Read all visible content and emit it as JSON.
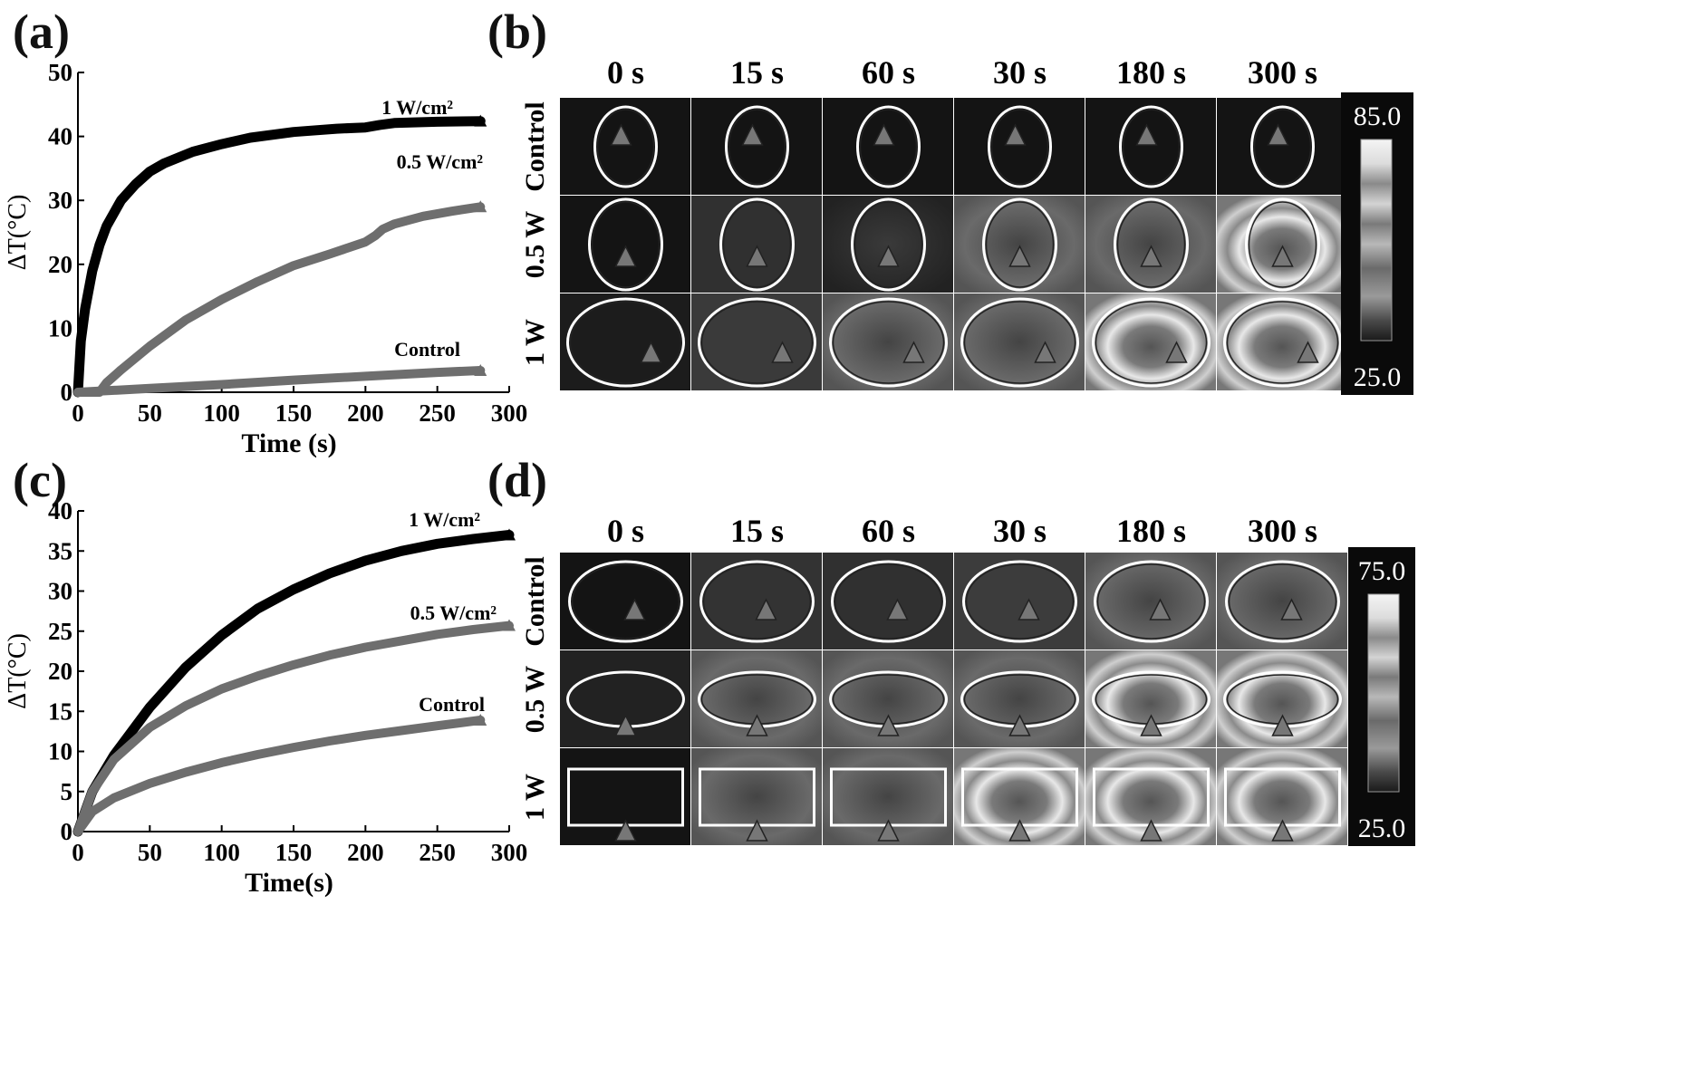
{
  "panels": {
    "a": "(a)",
    "b": "(b)",
    "c": "(c)",
    "d": "(d)"
  },
  "chart_data": [
    {
      "type": "line",
      "panel": "(a)",
      "xlabel": "Time (s)",
      "ylabel": "ΔT(°C)",
      "xlim": [
        0,
        300
      ],
      "ylim": [
        0,
        50
      ],
      "x_ticks": [
        "0",
        "50",
        "100",
        "150",
        "200",
        "250",
        "300"
      ],
      "y_ticks": [
        "0",
        "10",
        "20",
        "30",
        "40",
        "50"
      ],
      "series": [
        {
          "name": "1 W/cm²",
          "color": "#000000",
          "x": [
            0,
            2,
            5,
            10,
            15,
            20,
            30,
            40,
            50,
            60,
            80,
            100,
            120,
            150,
            180,
            200,
            210,
            220,
            250,
            280
          ],
          "y": [
            0,
            8,
            13,
            19,
            23,
            26,
            30,
            32.5,
            34.5,
            35.8,
            37.6,
            38.8,
            39.8,
            40.7,
            41.2,
            41.4,
            41.8,
            42.1,
            42.3,
            42.4
          ]
        },
        {
          "name": "0.5 W/cm²",
          "color": "#6e6e6e",
          "x": [
            0,
            15,
            20,
            30,
            50,
            75,
            100,
            125,
            150,
            175,
            200,
            207,
            212,
            220,
            240,
            260,
            280
          ],
          "y": [
            0,
            0,
            1.5,
            3.5,
            7.2,
            11.3,
            14.5,
            17.3,
            19.8,
            21.6,
            23.5,
            24.5,
            25.5,
            26.3,
            27.5,
            28.3,
            29
          ]
        },
        {
          "name": "Control",
          "color": "#6e6e6e",
          "x": [
            0,
            50,
            100,
            150,
            200,
            250,
            280
          ],
          "y": [
            0,
            0.6,
            1.2,
            1.9,
            2.5,
            3.1,
            3.4
          ]
        }
      ]
    },
    {
      "type": "line",
      "panel": "(c)",
      "xlabel": "Time(s)",
      "ylabel": "ΔT(°C)",
      "xlim": [
        0,
        300
      ],
      "ylim": [
        0,
        40
      ],
      "x_ticks": [
        "0",
        "50",
        "100",
        "150",
        "200",
        "250",
        "300"
      ],
      "y_ticks": [
        "0",
        "5",
        "10",
        "15",
        "20",
        "25",
        "30",
        "35",
        "40"
      ],
      "series": [
        {
          "name": "1 W/cm²",
          "color": "#000000",
          "x": [
            0,
            10,
            25,
            50,
            75,
            100,
            125,
            150,
            175,
            200,
            225,
            250,
            275,
            300
          ],
          "y": [
            0,
            5,
            9.5,
            15.5,
            20.5,
            24.5,
            27.8,
            30.2,
            32.2,
            33.8,
            35,
            35.9,
            36.5,
            37
          ]
        },
        {
          "name": "0.5 W/cm²",
          "color": "#6e6e6e",
          "x": [
            0,
            10,
            25,
            50,
            75,
            100,
            125,
            150,
            175,
            200,
            225,
            250,
            275,
            300
          ],
          "y": [
            0,
            5,
            9,
            13,
            15.7,
            17.8,
            19.4,
            20.8,
            22,
            23,
            23.8,
            24.6,
            25.2,
            25.7
          ]
        },
        {
          "name": "Control",
          "color": "#6e6e6e",
          "x": [
            0,
            10,
            25,
            50,
            75,
            100,
            125,
            150,
            175,
            200,
            225,
            250,
            280
          ],
          "y": [
            0,
            2.5,
            4.2,
            6,
            7.4,
            8.6,
            9.6,
            10.5,
            11.3,
            12,
            12.6,
            13.2,
            13.9
          ]
        }
      ]
    }
  ],
  "thermal_b": {
    "time_labels": [
      "0 s",
      "15 s",
      "60 s",
      "30 s",
      "180 s",
      "300 s"
    ],
    "row_labels": [
      "Control",
      "0.5 W",
      "1 W"
    ],
    "scale_max": "85.0",
    "scale_min": "25.0"
  },
  "thermal_d": {
    "time_labels": [
      "0 s",
      "15 s",
      "60 s",
      "30 s",
      "180 s",
      "300 s"
    ],
    "row_labels": [
      "Control",
      "0.5 W",
      "1 W"
    ],
    "scale_max": "75.0",
    "scale_min": "25.0"
  }
}
